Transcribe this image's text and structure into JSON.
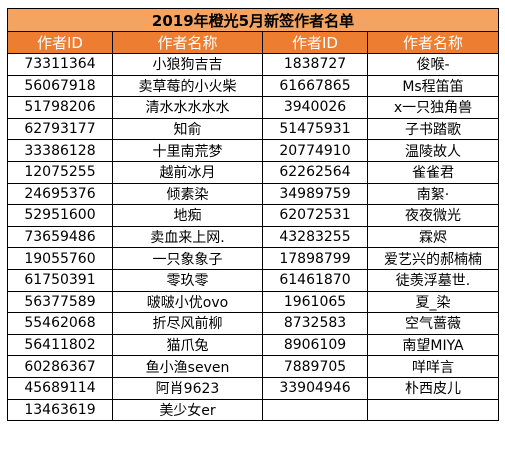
{
  "title": "2019年橙光5月新签作者名单",
  "headers": [
    "作者ID",
    "作者名称",
    "作者ID",
    "作者名称"
  ],
  "colors": {
    "title_bg": "#f4a460",
    "header_bg": "#ed7d31",
    "header_text": "#ffffff",
    "border": "#000000"
  },
  "rows": [
    [
      "73311364",
      "小狼狗吉吉",
      "1838727",
      "俊喉-"
    ],
    [
      "56067918",
      "卖草莓的小火柴",
      "61667865",
      "Ms程笛笛"
    ],
    [
      "51798206",
      "清水水水水水",
      "3940026",
      "x一只独角兽"
    ],
    [
      "62793177",
      "知俞",
      "51475931",
      "子书踏歌"
    ],
    [
      "33386128",
      "十里南荒梦",
      "20774910",
      "温陵故人"
    ],
    [
      "12075255",
      "越前冰月",
      "62262564",
      "雀雀君"
    ],
    [
      "24695376",
      "倾素染",
      "34989759",
      "南絮·"
    ],
    [
      "52951600",
      "地痴",
      "62072531",
      "夜夜微光"
    ],
    [
      "73659486",
      "卖血来上网.",
      "43283255",
      "霖烬"
    ],
    [
      "19055760",
      "一只象象子",
      "17898799",
      "爱艺兴的郝楠楠"
    ],
    [
      "61750391",
      "零玖零",
      "61461870",
      "徒羡浮墓世."
    ],
    [
      "56377589",
      "啵啵小优ovo",
      "1961065",
      "夏_染"
    ],
    [
      "55462068",
      "折尽风前柳",
      "8732583",
      "空气蔷薇"
    ],
    [
      "56411802",
      "猫爪兔",
      "8906109",
      "南望MIYA"
    ],
    [
      "60286367",
      "鱼小渔seven",
      "7889705",
      "咩咩言"
    ],
    [
      "45689114",
      "阿肖9623",
      "33904946",
      "朴西皮儿"
    ],
    [
      "13463619",
      "美少女er",
      "",
      ""
    ]
  ]
}
